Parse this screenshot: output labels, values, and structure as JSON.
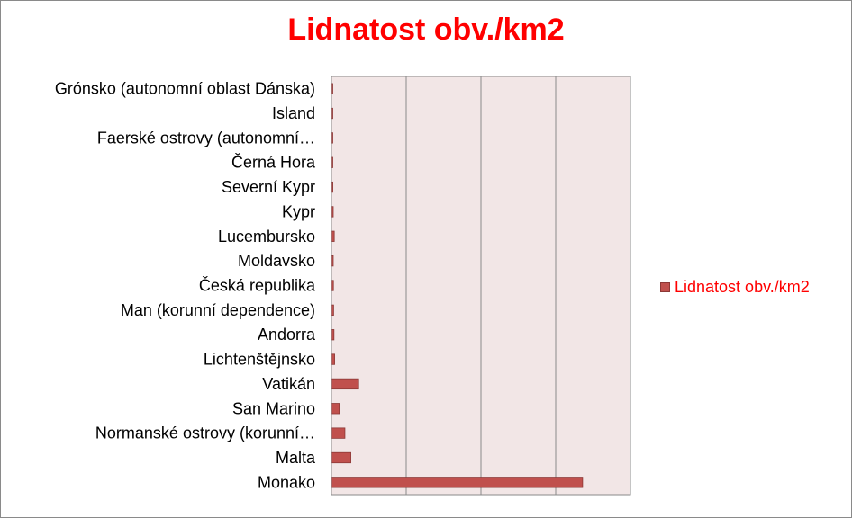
{
  "chart_data": {
    "type": "bar",
    "orientation": "horizontal",
    "title": "Lidnatost obv./km2",
    "categories": [
      "Grónsko (autonomní oblast Dánska)",
      "Island",
      "Faerské ostrovy (autonomní…",
      "Černá Hora",
      "Severní Kypr",
      "Kypr",
      "Lucembursko",
      "Moldavsko",
      "Česká republika",
      "Man (korunní dependence)",
      "Andorra",
      "Lichtenštějnsko",
      "Vatikán",
      "San Marino",
      "Normanské ostrovy (korunní…",
      "Malta",
      "Monako"
    ],
    "series": [
      {
        "name": "Lidnatost obv./km2",
        "color": "#c0504d",
        "values": [
          0.03,
          3,
          35,
          45,
          95,
          120,
          190,
          120,
          133,
          145,
          170,
          215,
          1820,
          520,
          900,
          1300,
          16800
        ]
      }
    ],
    "xlim": [
      0,
      20000
    ],
    "grid": true,
    "legend": "right",
    "plot_background": "#f2e6e6"
  }
}
